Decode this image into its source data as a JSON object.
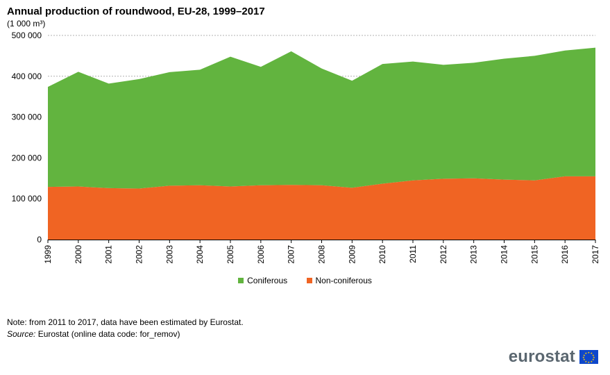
{
  "title": "Annual production of roundwood, EU-28, 1999–2017",
  "unit": "(1 000 m³)",
  "note": "Note: from 2011 to 2017, data have been estimated by Eurostat.",
  "source_label": "Source:",
  "source_text": " Eurostat (online data code: for_remov)",
  "logo_text": "eurostat",
  "chart_data": {
    "type": "area",
    "stacked": true,
    "title": "Annual production of roundwood, EU-28, 1999–2017",
    "ylabel": "(1 000 m³)",
    "ylim": [
      0,
      500000
    ],
    "yticks": [
      0,
      100000,
      200000,
      300000,
      400000,
      500000
    ],
    "ytick_labels": [
      "0",
      "100 000",
      "200 000",
      "300 000",
      "400 000",
      "500 000"
    ],
    "grid": true,
    "legend": "bottom",
    "categories": [
      "1999",
      "2000",
      "2001",
      "2002",
      "2003",
      "2004",
      "2005",
      "2006",
      "2007",
      "2008",
      "2009",
      "2010",
      "2011",
      "2012",
      "2013",
      "2014",
      "2015",
      "2016",
      "2017"
    ],
    "series": [
      {
        "name": "Non-coniferous",
        "color": "#f06423",
        "values": [
          129000,
          130000,
          126000,
          125000,
          132000,
          133000,
          130000,
          133000,
          134000,
          133000,
          127000,
          137000,
          145000,
          149000,
          150000,
          147000,
          145000,
          155000,
          155000
        ]
      },
      {
        "name": "Coniferous",
        "color": "#62b43f",
        "values": [
          245000,
          281000,
          256000,
          268000,
          278000,
          283000,
          318000,
          290000,
          327000,
          286000,
          262000,
          293000,
          291000,
          279000,
          283000,
          296000,
          305000,
          308000,
          315000
        ]
      }
    ]
  }
}
